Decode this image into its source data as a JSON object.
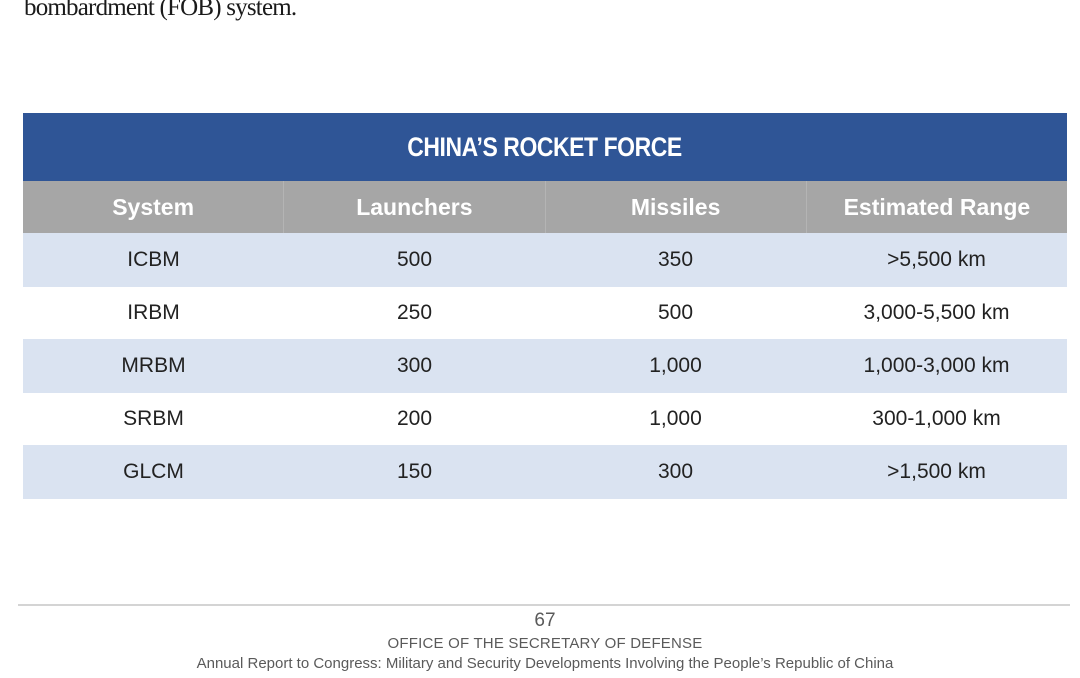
{
  "intro_text": "bombardment (FOB) system.",
  "table": {
    "title": "CHINA’S ROCKET FORCE",
    "headers": [
      "System",
      "Launchers",
      "Missiles",
      "Estimated Range"
    ],
    "rows": [
      [
        "ICBM",
        "500",
        "350",
        ">5,500 km"
      ],
      [
        "IRBM",
        "250",
        "500",
        "3,000-5,500 km"
      ],
      [
        "MRBM",
        "300",
        "1,000",
        "1,000-3,000 km"
      ],
      [
        "SRBM",
        "200",
        "1,000",
        "300-1,000 km"
      ],
      [
        "GLCM",
        "150",
        "300",
        ">1,500 km"
      ]
    ],
    "colors": {
      "title_bg": "#2f5596",
      "header_bg": "#a6a6a6",
      "band_bg": "#dae3f1"
    }
  },
  "footer": {
    "page_number": "67",
    "office": "OFFICE OF THE SECRETARY OF DEFENSE",
    "report": "Annual Report to Congress: Military and Security Developments Involving the People’s Republic of China"
  }
}
